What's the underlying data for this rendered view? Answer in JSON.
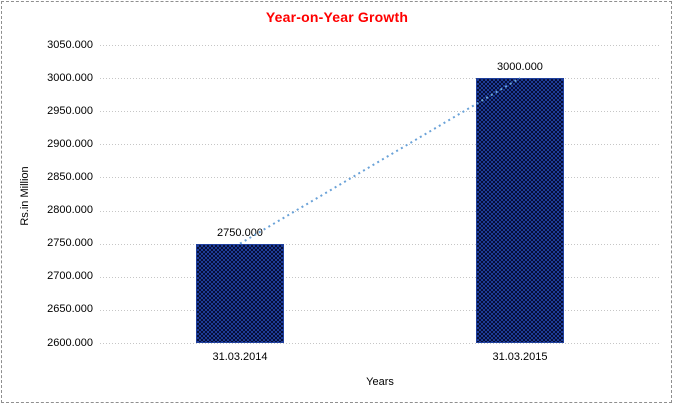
{
  "frame": {
    "border_style": "dashed",
    "border_color": "#8f8f8f"
  },
  "chart_data": {
    "type": "bar",
    "title": "Year-on-Year Growth",
    "title_color": "#ff0000",
    "categories": [
      "31.03.2014",
      "31.03.2015"
    ],
    "values": [
      2750,
      3000
    ],
    "data_labels": [
      "2750.000",
      "3000.000"
    ],
    "xlabel": "Years",
    "ylabel": "Rs.in Million",
    "ylim": [
      2600,
      3050
    ],
    "ytick_step": 50,
    "ytick_labels": [
      "3050.000",
      "3000.000",
      "2950.000",
      "2900.000",
      "2850.000",
      "2800.000",
      "2750.000",
      "2700.000",
      "2650.000",
      "2600.000"
    ],
    "grid": "horizontal-dotted",
    "gridline_color": "#c6c6c6",
    "legend": "none",
    "bar_color": "#132a78",
    "bar_pattern": "navy-black-dither",
    "trendline": {
      "style": "dotted",
      "color": "#6aa2d8",
      "from": 2750,
      "to": 3000
    }
  }
}
